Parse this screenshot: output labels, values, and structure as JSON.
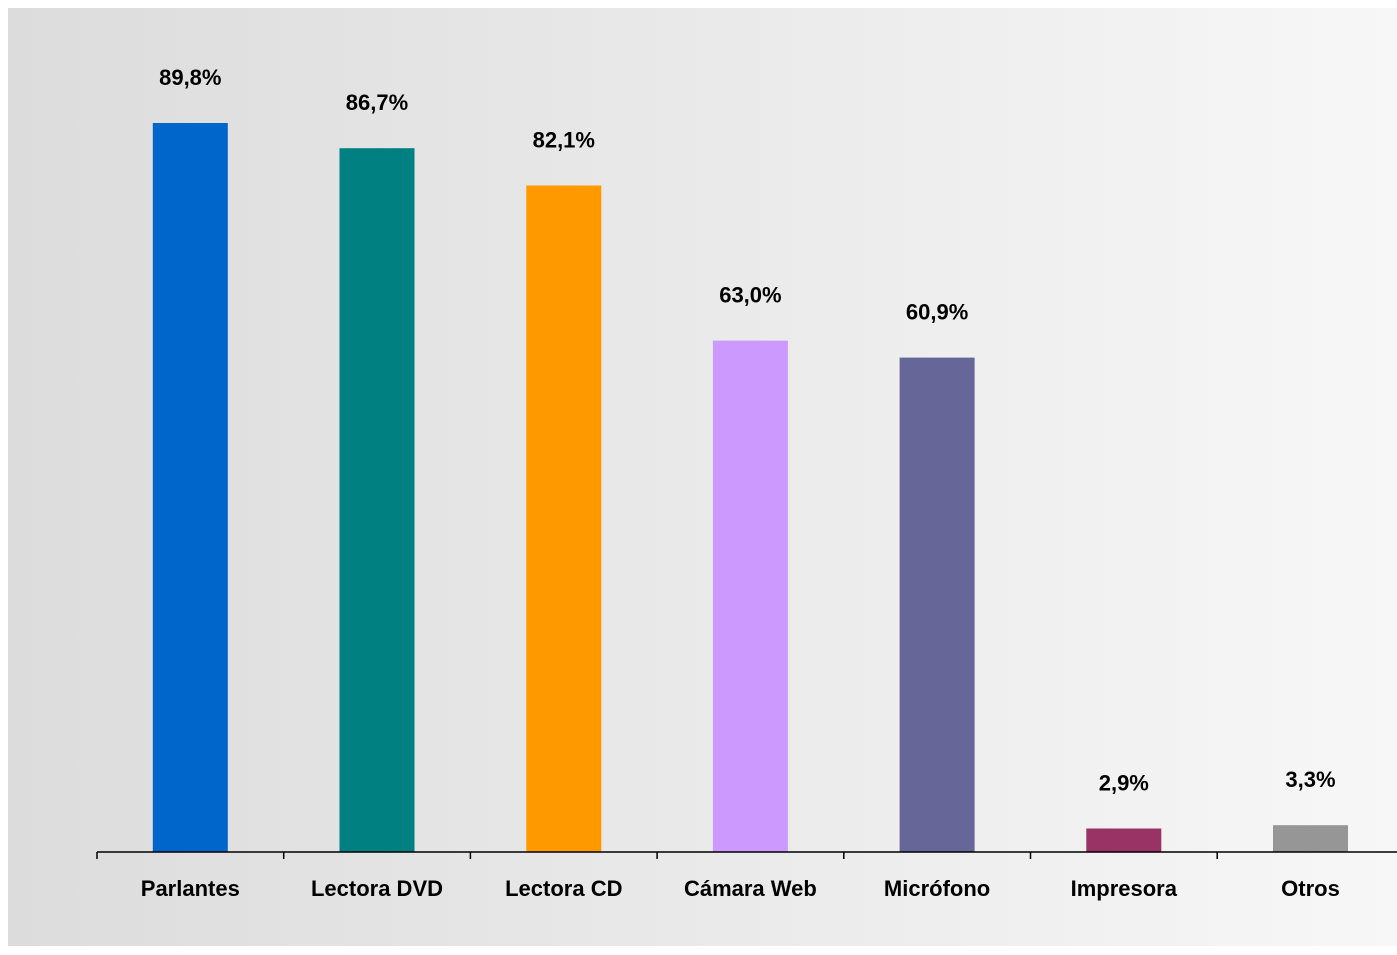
{
  "chart_data": {
    "type": "bar",
    "categories": [
      "Parlantes",
      "Lectora DVD",
      "Lectora CD",
      "Cámara Web",
      "Micrófono",
      "Impresora",
      "Otros"
    ],
    "values": [
      89.8,
      86.7,
      82.1,
      63.0,
      60.9,
      2.9,
      3.3
    ],
    "value_labels": [
      "89,8%",
      "86,7%",
      "82,1%",
      "63,0%",
      "60,9%",
      "2,9%",
      "3,3%"
    ],
    "colors": [
      "#0066CC",
      "#008080",
      "#FF9900",
      "#CC99FF",
      "#666699",
      "#993366",
      "#969696"
    ],
    "title": "",
    "xlabel": "",
    "ylabel": "",
    "ylim": [
      0,
      90
    ],
    "grid": false,
    "legend": "none",
    "background_gradient": [
      "#DCDCDC",
      "#F7F7F7"
    ]
  }
}
